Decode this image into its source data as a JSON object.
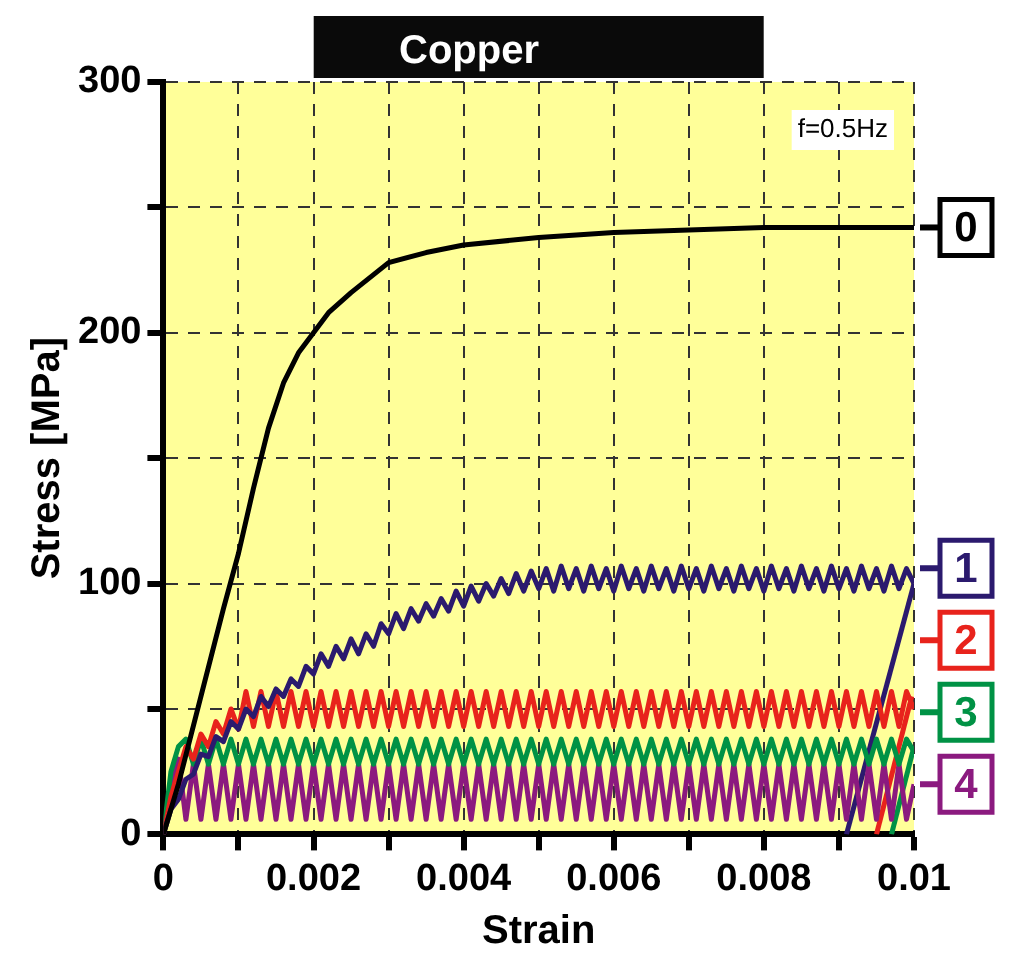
{
  "chart_data": {
    "type": "line",
    "title": "Copper",
    "xlabel": "Strain",
    "ylabel": "Stress [MPa]",
    "annotations": [
      "f=0.5Hz"
    ],
    "x": [
      0,
      0.0001,
      0.0002,
      0.0003,
      0.0004,
      0.0005,
      0.0006,
      0.0007,
      0.0008,
      0.0009,
      0.001,
      0.0011,
      0.0012,
      0.0013,
      0.0014,
      0.0015,
      0.0016,
      0.0017,
      0.0018,
      0.0019,
      0.002,
      0.0021,
      0.0022,
      0.0023,
      0.0024,
      0.0025,
      0.0026,
      0.0027,
      0.0028,
      0.0029,
      0.003,
      0.0031,
      0.0032,
      0.0033,
      0.0034,
      0.0035,
      0.0036,
      0.0037,
      0.0038,
      0.0039,
      0.004,
      0.0041,
      0.0042,
      0.0043,
      0.0044,
      0.0045,
      0.0046,
      0.0047,
      0.0048,
      0.0049,
      0.005,
      0.0051,
      0.0052,
      0.0053,
      0.0054,
      0.0055,
      0.0056,
      0.0057,
      0.0058,
      0.0059,
      0.006,
      0.0061,
      0.0062,
      0.0063,
      0.0064,
      0.0065,
      0.0066,
      0.0067,
      0.0068,
      0.0069,
      0.007,
      0.0071,
      0.0072,
      0.0073,
      0.0074,
      0.0075,
      0.0076,
      0.0077,
      0.0078,
      0.0079,
      0.008,
      0.0081,
      0.0082,
      0.0083,
      0.0084,
      0.0085,
      0.0086,
      0.0087,
      0.0088,
      0.0089,
      0.009,
      0.0091,
      0.0092,
      0.0093,
      0.0094,
      0.0095,
      0.0096,
      0.0097,
      0.0098,
      0.0099,
      0.01
    ],
    "series": [
      {
        "name": "0",
        "color": "#000000",
        "x": [
          0,
          0.0002,
          0.0005,
          0.0008,
          0.001,
          0.0012,
          0.0014,
          0.0016,
          0.0018,
          0.002,
          0.0022,
          0.0025,
          0.003,
          0.0035,
          0.004,
          0.005,
          0.006,
          0.007,
          0.008,
          0.01
        ],
        "values": [
          0,
          20,
          55,
          90,
          112,
          138,
          162,
          180,
          192,
          200,
          208,
          216,
          228,
          232,
          235,
          238,
          240,
          241,
          242,
          242
        ]
      },
      {
        "name": "1",
        "color": "#2b1a6e",
        "values": [
          0,
          10,
          14,
          22,
          24,
          32,
          31,
          39,
          37,
          45,
          42,
          50,
          47,
          55,
          51,
          58,
          55,
          62,
          59,
          67,
          64,
          72,
          67,
          75,
          70,
          78,
          72,
          80,
          75,
          84,
          80,
          88,
          82,
          90,
          85,
          92,
          87,
          94,
          89,
          97,
          91,
          99,
          93,
          100,
          95,
          102,
          96,
          104,
          97,
          105,
          98,
          106,
          97,
          107,
          98,
          106,
          97,
          107,
          98,
          106,
          97,
          107,
          98,
          106,
          97,
          107,
          98,
          106,
          97,
          107,
          98,
          106,
          97,
          107,
          98,
          106,
          97,
          107,
          98,
          106,
          97,
          107,
          98,
          106,
          97,
          107,
          98,
          106,
          97,
          107,
          98,
          106,
          97,
          107,
          98,
          106,
          97,
          107,
          98,
          106,
          100
        ]
      },
      {
        "name": "2",
        "color": "#e8231c",
        "values": [
          0,
          15,
          25,
          35,
          30,
          40,
          35,
          45,
          40,
          50,
          42,
          57,
          43,
          57,
          43,
          57,
          43,
          57,
          43,
          57,
          43,
          57,
          43,
          57,
          43,
          57,
          43,
          57,
          43,
          57,
          43,
          57,
          43,
          57,
          43,
          57,
          43,
          57,
          43,
          57,
          43,
          57,
          43,
          57,
          43,
          57,
          43,
          57,
          43,
          57,
          43,
          57,
          43,
          57,
          43,
          57,
          43,
          57,
          43,
          57,
          43,
          57,
          43,
          57,
          43,
          57,
          43,
          57,
          43,
          57,
          43,
          57,
          43,
          57,
          43,
          57,
          43,
          57,
          43,
          57,
          43,
          57,
          43,
          57,
          43,
          57,
          43,
          57,
          43,
          57,
          43,
          57,
          43,
          57,
          43,
          57,
          43,
          57,
          43,
          57,
          50
        ]
      },
      {
        "name": "3",
        "color": "#009245",
        "values": [
          0,
          25,
          35,
          38,
          28,
          38,
          28,
          38,
          28,
          38,
          28,
          38,
          28,
          38,
          28,
          38,
          28,
          38,
          28,
          38,
          28,
          38,
          28,
          38,
          28,
          38,
          28,
          38,
          28,
          38,
          28,
          38,
          28,
          38,
          28,
          38,
          28,
          38,
          28,
          38,
          28,
          38,
          28,
          38,
          28,
          38,
          28,
          38,
          28,
          38,
          28,
          38,
          28,
          38,
          28,
          38,
          28,
          38,
          28,
          38,
          28,
          38,
          28,
          38,
          28,
          38,
          28,
          38,
          28,
          38,
          28,
          38,
          28,
          38,
          28,
          38,
          28,
          38,
          28,
          38,
          28,
          38,
          28,
          38,
          28,
          38,
          28,
          38,
          28,
          38,
          28,
          38,
          28,
          38,
          28,
          38,
          28,
          38,
          28,
          38,
          33
        ]
      },
      {
        "name": "4",
        "color": "#8b1a7f",
        "values": [
          0,
          20,
          30,
          6,
          28,
          6,
          28,
          6,
          28,
          6,
          28,
          6,
          28,
          6,
          28,
          6,
          28,
          6,
          28,
          6,
          28,
          6,
          28,
          6,
          28,
          6,
          28,
          6,
          28,
          6,
          28,
          6,
          28,
          6,
          28,
          6,
          28,
          6,
          28,
          6,
          28,
          6,
          28,
          6,
          28,
          6,
          28,
          6,
          28,
          6,
          28,
          6,
          28,
          6,
          28,
          6,
          28,
          6,
          28,
          6,
          28,
          6,
          28,
          6,
          28,
          6,
          28,
          6,
          28,
          6,
          28,
          6,
          28,
          6,
          28,
          6,
          28,
          6,
          28,
          6,
          28,
          6,
          28,
          6,
          28,
          6,
          28,
          6,
          28,
          6,
          28,
          6,
          28,
          6,
          28,
          6,
          28,
          6,
          28,
          6,
          20
        ]
      },
      {
        "color": "#2b1a6e",
        "x": [
          0.0091,
          0.01
        ],
        "values": [
          0,
          100
        ]
      },
      {
        "color": "#e8231c",
        "x": [
          0.0095,
          0.00997
        ],
        "values": [
          0,
          55
        ]
      },
      {
        "color": "#009245",
        "x": [
          0.0097,
          0.01
        ],
        "values": [
          0,
          35
        ]
      }
    ],
    "xlim": [
      0,
      0.01
    ],
    "ylim": [
      0,
      300
    ],
    "xticks": [
      0,
      {
        "value": 0.001,
        "label": null
      },
      0.002,
      {
        "value": 0.003,
        "label": null
      },
      0.004,
      {
        "value": 0.005,
        "label": null
      },
      0.006,
      {
        "value": 0.007,
        "label": null
      },
      0.008,
      {
        "value": 0.009,
        "label": null
      },
      0.01
    ],
    "yticks": [
      0,
      {
        "value": 50,
        "label": null
      },
      100,
      {
        "value": 150,
        "label": null
      },
      200,
      {
        "value": 250,
        "label": null
      },
      300
    ],
    "grid": true,
    "legend": "right",
    "marker": "none",
    "line_style": "solid"
  }
}
